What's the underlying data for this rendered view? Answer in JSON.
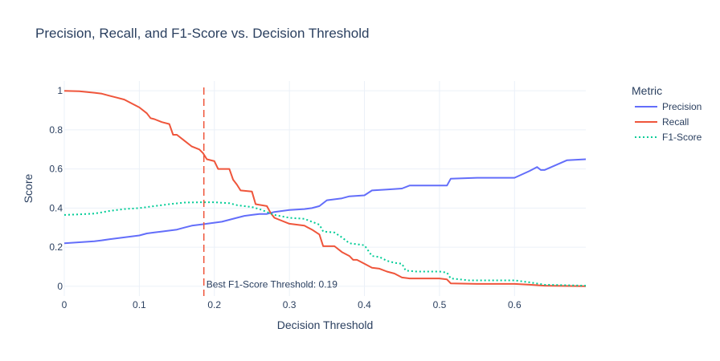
{
  "chart_data": {
    "type": "line",
    "title": "Precision, Recall, and F1-Score vs. Decision Threshold",
    "xlabel": "Decision Threshold",
    "ylabel": "Score",
    "xlim": [
      0,
      0.695
    ],
    "ylim": [
      -0.05,
      1.05
    ],
    "x_ticks": [
      0,
      0.1,
      0.2,
      0.3,
      0.4,
      0.5,
      0.6
    ],
    "x_tick_labels": [
      "0",
      "0.1",
      "0.2",
      "0.3",
      "0.4",
      "0.5",
      "0.6"
    ],
    "y_ticks": [
      0,
      0.2,
      0.4,
      0.6,
      0.8,
      1
    ],
    "y_tick_labels": [
      "0",
      "0.2",
      "0.4",
      "0.6",
      "0.8",
      "1"
    ],
    "grid": true,
    "legend": {
      "title": "Metric",
      "placement": "top-right"
    },
    "series": [
      {
        "name": "Precision",
        "color": "#636efa",
        "dash": "solid",
        "points": [
          [
            0,
            0.22
          ],
          [
            0.02,
            0.225
          ],
          [
            0.04,
            0.23
          ],
          [
            0.05,
            0.235
          ],
          [
            0.06,
            0.24
          ],
          [
            0.08,
            0.25
          ],
          [
            0.1,
            0.26
          ],
          [
            0.11,
            0.27
          ],
          [
            0.12,
            0.275
          ],
          [
            0.13,
            0.28
          ],
          [
            0.15,
            0.29
          ],
          [
            0.16,
            0.3
          ],
          [
            0.17,
            0.31
          ],
          [
            0.19,
            0.32
          ],
          [
            0.2,
            0.325
          ],
          [
            0.21,
            0.33
          ],
          [
            0.23,
            0.35
          ],
          [
            0.24,
            0.36
          ],
          [
            0.25,
            0.365
          ],
          [
            0.26,
            0.37
          ],
          [
            0.27,
            0.37
          ],
          [
            0.28,
            0.38
          ],
          [
            0.3,
            0.39
          ],
          [
            0.32,
            0.395
          ],
          [
            0.33,
            0.4
          ],
          [
            0.34,
            0.41
          ],
          [
            0.35,
            0.44
          ],
          [
            0.37,
            0.45
          ],
          [
            0.38,
            0.46
          ],
          [
            0.4,
            0.465
          ],
          [
            0.41,
            0.49
          ],
          [
            0.43,
            0.495
          ],
          [
            0.45,
            0.5
          ],
          [
            0.46,
            0.515
          ],
          [
            0.49,
            0.515
          ],
          [
            0.51,
            0.515
          ],
          [
            0.515,
            0.55
          ],
          [
            0.55,
            0.555
          ],
          [
            0.58,
            0.555
          ],
          [
            0.6,
            0.555
          ],
          [
            0.62,
            0.59
          ],
          [
            0.63,
            0.61
          ],
          [
            0.635,
            0.595
          ],
          [
            0.64,
            0.595
          ],
          [
            0.67,
            0.645
          ],
          [
            0.695,
            0.65
          ]
        ]
      },
      {
        "name": "Recall",
        "color": "#ef553b",
        "dash": "solid",
        "points": [
          [
            0,
            1.0
          ],
          [
            0.02,
            0.998
          ],
          [
            0.04,
            0.99
          ],
          [
            0.05,
            0.985
          ],
          [
            0.06,
            0.975
          ],
          [
            0.07,
            0.965
          ],
          [
            0.08,
            0.955
          ],
          [
            0.09,
            0.935
          ],
          [
            0.1,
            0.915
          ],
          [
            0.11,
            0.885
          ],
          [
            0.115,
            0.86
          ],
          [
            0.12,
            0.855
          ],
          [
            0.13,
            0.84
          ],
          [
            0.14,
            0.83
          ],
          [
            0.145,
            0.775
          ],
          [
            0.15,
            0.775
          ],
          [
            0.16,
            0.745
          ],
          [
            0.17,
            0.715
          ],
          [
            0.18,
            0.7
          ],
          [
            0.185,
            0.68
          ],
          [
            0.19,
            0.65
          ],
          [
            0.2,
            0.64
          ],
          [
            0.205,
            0.6
          ],
          [
            0.22,
            0.6
          ],
          [
            0.225,
            0.545
          ],
          [
            0.23,
            0.52
          ],
          [
            0.235,
            0.49
          ],
          [
            0.25,
            0.485
          ],
          [
            0.255,
            0.42
          ],
          [
            0.27,
            0.41
          ],
          [
            0.275,
            0.375
          ],
          [
            0.28,
            0.35
          ],
          [
            0.3,
            0.32
          ],
          [
            0.32,
            0.31
          ],
          [
            0.33,
            0.29
          ],
          [
            0.34,
            0.265
          ],
          [
            0.345,
            0.205
          ],
          [
            0.36,
            0.205
          ],
          [
            0.37,
            0.175
          ],
          [
            0.38,
            0.155
          ],
          [
            0.385,
            0.135
          ],
          [
            0.39,
            0.135
          ],
          [
            0.4,
            0.115
          ],
          [
            0.41,
            0.095
          ],
          [
            0.42,
            0.09
          ],
          [
            0.43,
            0.075
          ],
          [
            0.44,
            0.065
          ],
          [
            0.45,
            0.045
          ],
          [
            0.46,
            0.04
          ],
          [
            0.5,
            0.04
          ],
          [
            0.51,
            0.035
          ],
          [
            0.515,
            0.015
          ],
          [
            0.55,
            0.012
          ],
          [
            0.6,
            0.012
          ],
          [
            0.62,
            0.008
          ],
          [
            0.64,
            0.003
          ],
          [
            0.695,
            0.0
          ]
        ]
      },
      {
        "name": "F1-Score",
        "color": "#00cc96",
        "dash": "dot",
        "points": [
          [
            0,
            0.365
          ],
          [
            0.02,
            0.368
          ],
          [
            0.04,
            0.372
          ],
          [
            0.05,
            0.378
          ],
          [
            0.06,
            0.385
          ],
          [
            0.07,
            0.39
          ],
          [
            0.08,
            0.395
          ],
          [
            0.1,
            0.4
          ],
          [
            0.12,
            0.41
          ],
          [
            0.14,
            0.42
          ],
          [
            0.16,
            0.428
          ],
          [
            0.185,
            0.43
          ],
          [
            0.2,
            0.43
          ],
          [
            0.22,
            0.425
          ],
          [
            0.23,
            0.415
          ],
          [
            0.25,
            0.405
          ],
          [
            0.26,
            0.395
          ],
          [
            0.28,
            0.365
          ],
          [
            0.3,
            0.35
          ],
          [
            0.32,
            0.345
          ],
          [
            0.33,
            0.33
          ],
          [
            0.34,
            0.315
          ],
          [
            0.345,
            0.28
          ],
          [
            0.36,
            0.275
          ],
          [
            0.37,
            0.25
          ],
          [
            0.38,
            0.22
          ],
          [
            0.4,
            0.21
          ],
          [
            0.41,
            0.155
          ],
          [
            0.42,
            0.15
          ],
          [
            0.43,
            0.13
          ],
          [
            0.44,
            0.12
          ],
          [
            0.45,
            0.115
          ],
          [
            0.455,
            0.08
          ],
          [
            0.47,
            0.075
          ],
          [
            0.5,
            0.075
          ],
          [
            0.51,
            0.07
          ],
          [
            0.515,
            0.04
          ],
          [
            0.54,
            0.03
          ],
          [
            0.6,
            0.03
          ],
          [
            0.62,
            0.02
          ],
          [
            0.64,
            0.008
          ],
          [
            0.695,
            0.003
          ]
        ]
      }
    ],
    "threshold_line": {
      "x": 0.186,
      "color": "#ef553b",
      "dash": "dash"
    },
    "annotations": [
      {
        "text": "Best F1-Score Threshold: 0.19",
        "x": 0.186,
        "y": -0.02
      }
    ]
  }
}
